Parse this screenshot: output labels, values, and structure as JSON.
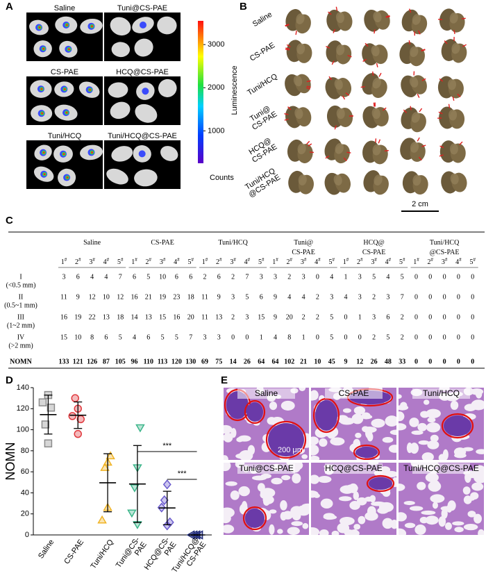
{
  "panel_labels": [
    "A",
    "B",
    "C",
    "D",
    "E"
  ],
  "imaging": {
    "labels": [
      "Saline",
      "Tuni@CS-PAE",
      "CS-PAE",
      "HCQ@CS-PAE",
      "Tuni/HCQ",
      "Tuni/HCQ@CS-PAE"
    ],
    "colorbar": {
      "title": "Luminescence",
      "unit": "Counts",
      "lim": [
        250,
        3550
      ],
      "ticks": [
        1000,
        2000,
        3000
      ]
    }
  },
  "photos": {
    "rows": [
      [
        "Saline"
      ],
      [
        "CS-PAE"
      ],
      [
        "Tuni/HCQ"
      ],
      [
        "Tuni@",
        "CS-PAE"
      ],
      [
        "HCQ@",
        "CS-PAE"
      ],
      [
        "Tuni/HCQ",
        "@CS-PAE"
      ]
    ],
    "scale": "2 cm"
  },
  "table": {
    "groups": [
      [
        "Saline"
      ],
      [
        "CS-PAE"
      ],
      [
        "Tuni/HCQ"
      ],
      [
        "Tuni@",
        "CS-PAE"
      ],
      [
        "HCQ@",
        "CS-PAE"
      ],
      [
        "Tuni/HCQ",
        "@CS-PAE"
      ]
    ],
    "samples": [
      "1",
      "2",
      "3",
      "4",
      "5"
    ],
    "sample_mark": "#",
    "rows": [
      {
        "label": "I",
        "range": "(<0.5 mm)",
        "values": [
          3,
          6,
          4,
          4,
          7,
          6,
          5,
          10,
          6,
          6,
          2,
          6,
          2,
          7,
          3,
          3,
          2,
          3,
          0,
          4,
          1,
          3,
          5,
          4,
          5,
          0,
          0,
          0,
          0,
          0
        ]
      },
      {
        "label": "II",
        "range": "(0.5~1 mm)",
        "values": [
          11,
          9,
          12,
          10,
          12,
          16,
          21,
          19,
          23,
          18,
          11,
          9,
          3,
          5,
          6,
          9,
          4,
          4,
          2,
          3,
          4,
          3,
          2,
          3,
          7,
          0,
          0,
          0,
          0,
          0
        ]
      },
      {
        "label": "III",
        "range": "(1~2 mm)",
        "values": [
          16,
          19,
          22,
          13,
          18,
          14,
          13,
          15,
          16,
          20,
          11,
          13,
          2,
          3,
          15,
          9,
          20,
          2,
          2,
          5,
          0,
          1,
          3,
          6,
          2,
          0,
          0,
          0,
          0,
          0
        ]
      },
      {
        "label": "IV",
        "range": "(>2 mm)",
        "values": [
          15,
          10,
          8,
          6,
          5,
          4,
          6,
          5,
          5,
          7,
          3,
          3,
          0,
          0,
          1,
          4,
          8,
          1,
          0,
          5,
          0,
          0,
          2,
          5,
          2,
          0,
          0,
          0,
          0,
          0
        ]
      }
    ],
    "total": {
      "label": "NOMN",
      "values": [
        133,
        121,
        126,
        87,
        105,
        96,
        110,
        113,
        120,
        130,
        69,
        75,
        14,
        26,
        64,
        64,
        102,
        21,
        10,
        45,
        9,
        12,
        26,
        48,
        33,
        0,
        0,
        0,
        0,
        0
      ]
    }
  },
  "chart_data": {
    "type": "dot",
    "ylabel": "NOMN",
    "ylim": [
      0,
      140
    ],
    "yticks": [
      0,
      20,
      40,
      60,
      80,
      100,
      120,
      140
    ],
    "categories": [
      [
        "Saline"
      ],
      [
        "CS-PAE"
      ],
      [
        "Tuni/HCQ"
      ],
      [
        "Tuni@CS-",
        "PAE"
      ],
      [
        "HCQ@CS-",
        "PAE"
      ],
      [
        "Tuni/HCQ@",
        "CS-PAE"
      ]
    ],
    "groups": [
      {
        "color": "#8c8c8c",
        "marker": "square",
        "values": [
          133,
          121,
          126,
          87,
          105
        ],
        "mean": 114.4,
        "sd": 18.5
      },
      {
        "color": "#e0393e",
        "marker": "circle",
        "values": [
          96,
          110,
          113,
          120,
          130
        ],
        "mean": 113.8,
        "sd": 12.6
      },
      {
        "color": "#f0b323",
        "marker": "triangle-up",
        "values": [
          69,
          75,
          14,
          26,
          64
        ],
        "mean": 49.6,
        "sd": 27.6
      },
      {
        "color": "#3cb58a",
        "marker": "triangle-down",
        "values": [
          64,
          102,
          21,
          10,
          45
        ],
        "mean": 48.4,
        "sd": 36.6
      },
      {
        "color": "#6a5acd",
        "marker": "diamond",
        "values": [
          9,
          12,
          26,
          48,
          33
        ],
        "mean": 25.6,
        "sd": 15.9
      },
      {
        "color": "#1f2a7a",
        "marker": "triangle-left",
        "values": [
          0,
          0,
          0,
          0,
          0
        ],
        "mean": 0,
        "sd": 0
      }
    ],
    "annotations": [
      "***",
      "***"
    ]
  },
  "histology": {
    "labels": [
      "Saline",
      "CS-PAE",
      "Tuni/HCQ",
      "Tuni@CS-PAE",
      "HCQ@CS-PAE",
      "Tuni/HCQ@CS-PAE"
    ],
    "scale": "200 μm"
  }
}
